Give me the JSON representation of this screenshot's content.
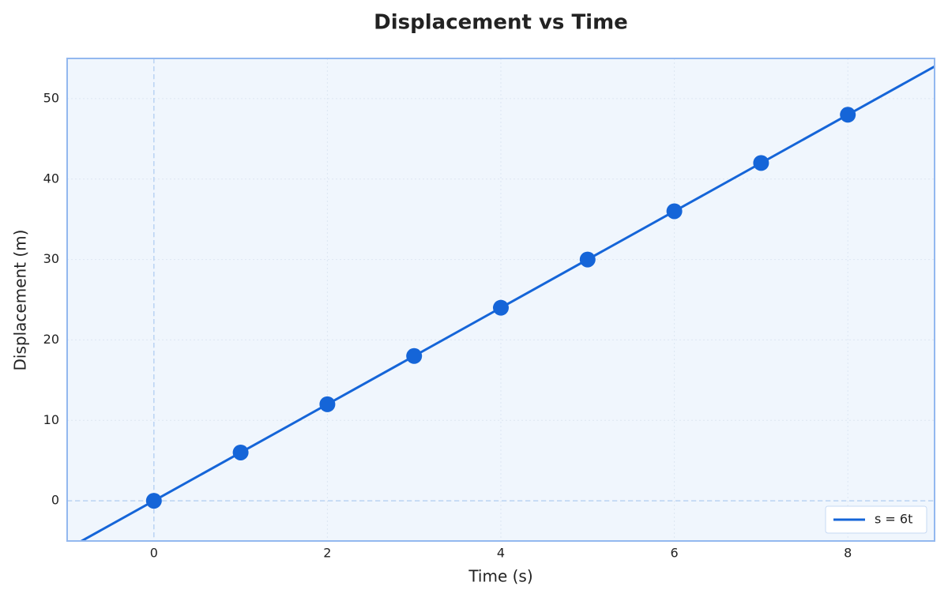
{
  "chart_data": {
    "type": "line",
    "title": "Displacement vs Time",
    "x_label": "Time (s)",
    "y_label": "Displacement (m)",
    "xlim": [
      -1,
      9
    ],
    "ylim": [
      -5,
      55
    ],
    "xticks": [
      0,
      2,
      4,
      6,
      8
    ],
    "yticks": [
      0,
      10,
      20,
      30,
      40,
      50
    ],
    "grid": true,
    "legend": "lower right",
    "reference_lines": {
      "x": 0,
      "y": 0
    },
    "series": [
      {
        "name": "s = 6t",
        "type": "line",
        "color": "#1565d8",
        "x": [
          -1,
          9
        ],
        "values": [
          -6,
          54
        ]
      },
      {
        "type": "scatter",
        "color": "#1565d8",
        "x": [
          0,
          1,
          2,
          3,
          4,
          5,
          6,
          7,
          8
        ],
        "values": [
          0,
          6,
          12,
          18,
          24,
          30,
          36,
          42,
          48
        ]
      }
    ]
  }
}
